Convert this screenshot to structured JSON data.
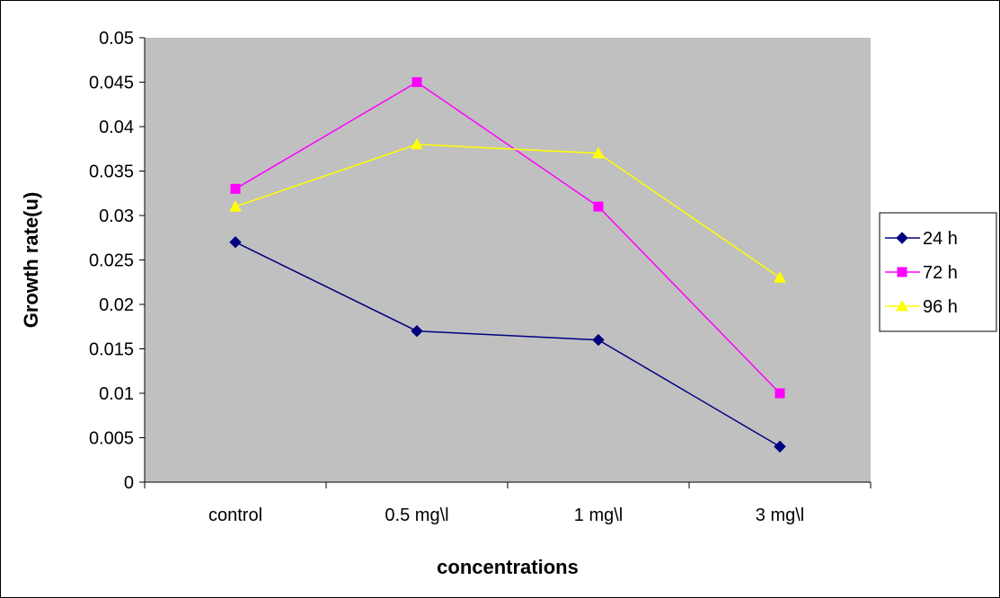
{
  "chart_data": {
    "type": "line",
    "title": "",
    "xlabel": "concentrations",
    "ylabel": "Growth rate(u)",
    "categories": [
      "control",
      "0.5 mg\\l",
      "1 mg\\l",
      "3 mg\\l"
    ],
    "ylim": [
      0,
      0.05
    ],
    "yticks": [
      "0",
      "0.005",
      "0.01",
      "0.015",
      "0.02",
      "0.025",
      "0.03",
      "0.035",
      "0.04",
      "0.045",
      "0.05"
    ],
    "grid": false,
    "plot_background": "#c0c0c0",
    "legend": "right",
    "series": [
      {
        "name": "24 h",
        "color": "#000080",
        "marker": "diamond",
        "values": [
          0.027,
          0.017,
          0.016,
          0.004
        ]
      },
      {
        "name": "72 h",
        "color": "#ff00ff",
        "marker": "square",
        "values": [
          0.033,
          0.045,
          0.031,
          0.01
        ]
      },
      {
        "name": "96 h",
        "color": "#ffff00",
        "marker": "triangle",
        "values": [
          0.031,
          0.038,
          0.037,
          0.023
        ]
      }
    ]
  }
}
